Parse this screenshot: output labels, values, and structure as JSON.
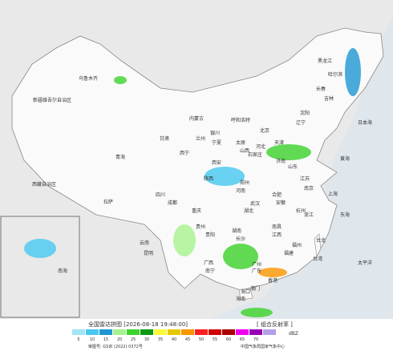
{
  "map": {
    "places": [
      "乌鲁木齐",
      "新疆维吾尔自治区",
      "西藏自治区",
      "拉萨",
      "青海",
      "西宁",
      "甘肃",
      "兰州",
      "内蒙古",
      "呼和浩特",
      "宁夏",
      "银川",
      "陕西",
      "西安",
      "山西",
      "太原",
      "河北",
      "石家庄",
      "北京",
      "天津",
      "辽宁",
      "沈阳",
      "吉林",
      "长春",
      "黑龙江",
      "哈尔滨",
      "山东",
      "济南",
      "河南",
      "郑州",
      "江苏",
      "南京",
      "安徽",
      "合肥",
      "上海",
      "浙江",
      "杭州",
      "湖北",
      "武汉",
      "四川",
      "成都",
      "重庆",
      "贵州",
      "贵阳",
      "云南",
      "昆明",
      "湖南",
      "长沙",
      "江西",
      "南昌",
      "福建",
      "福州",
      "台湾",
      "台北",
      "广西",
      "南宁",
      "广东",
      "广州",
      "香港",
      "澳门",
      "海南",
      "海口",
      "日本海",
      "黄海",
      "东海",
      "太平洋",
      "南海"
    ]
  },
  "legend": {
    "title": "全国雷达拼图 [2026-08-18 19:48:00]",
    "product": "[ 组合反射率 ]",
    "unit": "dBZ",
    "levels": [
      {
        "value": 5,
        "color": "#a0e6f5"
      },
      {
        "value": 10,
        "color": "#46c8f0"
      },
      {
        "value": 15,
        "color": "#1e96d2"
      },
      {
        "value": 20,
        "color": "#a6f28e"
      },
      {
        "value": 25,
        "color": "#3cd22a"
      },
      {
        "value": 30,
        "color": "#0a9a12"
      },
      {
        "value": 35,
        "color": "#fafa3c"
      },
      {
        "value": 40,
        "color": "#e6c800"
      },
      {
        "value": 45,
        "color": "#fa9600"
      },
      {
        "value": 50,
        "color": "#fa1e1e"
      },
      {
        "value": 55,
        "color": "#d20000"
      },
      {
        "value": 60,
        "color": "#aa0000"
      },
      {
        "value": 65,
        "color": "#f000f0"
      },
      {
        "value": 70,
        "color": "#9600b4"
      },
      {
        "value": null,
        "color": "#b4a0e6"
      }
    ]
  },
  "footer": {
    "approval": "审图号: GS京 (2022) 0372号",
    "source": "中国气象局国家气象中心"
  }
}
